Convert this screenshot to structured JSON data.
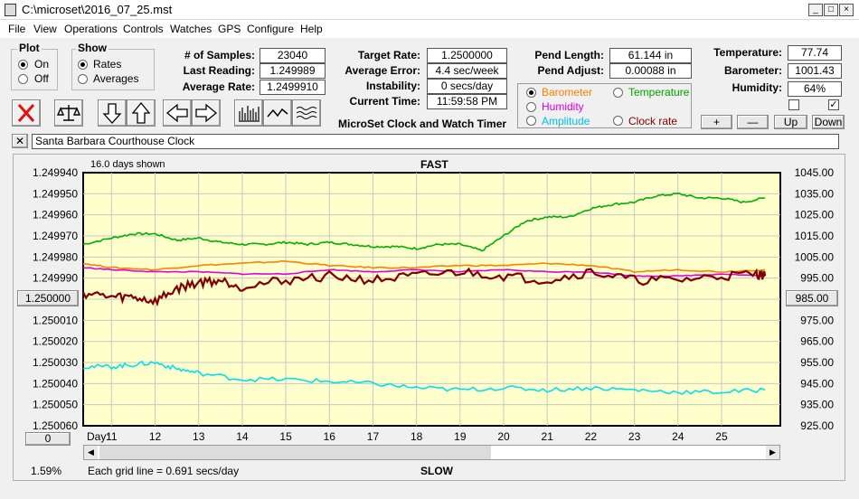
{
  "window": {
    "title": "C:\\microset\\2016_07_25.mst"
  },
  "menu": [
    "File",
    "View",
    "Operations",
    "Controls",
    "Watches",
    "GPS",
    "Configure",
    "Help"
  ],
  "plot": {
    "title": "Plot",
    "options": [
      "On",
      "Off"
    ],
    "selected": "On"
  },
  "show": {
    "title": "Show",
    "options": [
      "Rates",
      "Averages"
    ],
    "selected": "Rates"
  },
  "stats": {
    "samples_label": "# of Samples:",
    "samples": "23040",
    "last_label": "Last Reading:",
    "last": "1.249989",
    "avg_rate_label": "Average Rate:",
    "avg_rate": "1.2499910",
    "target_label": "Target Rate:",
    "target": "1.2500000",
    "avg_err_label": "Average Error:",
    "avg_err": "4.4 sec/week",
    "instab_label": "Instability:",
    "instab": "0 secs/day",
    "time_label": "Current Time:",
    "time": "11:59:58 PM",
    "pend_len_label": "Pend Length:",
    "pend_len": "61.144 in",
    "pend_adj_label": "Pend Adjust:",
    "pend_adj": "0.00088 in",
    "temp_label": "Temperature:",
    "temp": "77.74",
    "baro_label": "Barometer:",
    "baro": "1001.43",
    "hum_label": "Humidity:",
    "hum": "64%"
  },
  "app_caption": "MicroSet Clock and Watch Timer",
  "sensor_options": [
    {
      "label": "Barometer",
      "color": "#ff8000",
      "selected": true
    },
    {
      "label": "Temperature",
      "color": "#00a000",
      "selected": false
    },
    {
      "label": "Humidity",
      "color": "#e000e0",
      "selected": false
    },
    {
      "label": "Amplitude",
      "color": "#00c0e0",
      "selected": false
    },
    {
      "label": "Clock rate",
      "color": "#800000",
      "selected": false
    }
  ],
  "adjust_buttons": [
    "+",
    "—",
    "Up",
    "Down"
  ],
  "checkbox_right_checked": true,
  "clock_name": "Santa Barbara Courthouse Clock",
  "chart": {
    "days_shown": "16.0 days shown",
    "top_label": "FAST",
    "bottom_label": "SLOW",
    "grid_note": "Each grid line = 0.691 secs/day",
    "percent": "1.59%",
    "center_left": "1.250000",
    "center_right": "985.00",
    "bottom_btn": "0",
    "day_prefix": "Day:"
  },
  "chart_data": {
    "type": "line",
    "x_label": "Day:",
    "x_ticks": [
      11,
      12,
      13,
      14,
      15,
      16,
      17,
      18,
      19,
      20,
      21,
      22,
      23,
      24,
      25
    ],
    "xlim": [
      10.35,
      26.35
    ],
    "left_axis_ticks": [
      "1.249940",
      "1.249950",
      "1.249960",
      "1.249970",
      "1.249980",
      "1.249990",
      "1.250000",
      "1.250010",
      "1.250020",
      "1.250030",
      "1.250040",
      "1.250050",
      "1.250060"
    ],
    "ylim_left": [
      1.24994,
      1.25006
    ],
    "left_axis_inverted": true,
    "right_axis_ticks": [
      "1045.00",
      "1035.00",
      "1025.00",
      "1015.00",
      "1005.00",
      "995.00",
      "985.00",
      "975.00",
      "965.00",
      "955.00",
      "945.00",
      "935.00",
      "925.00"
    ],
    "ylim_right": [
      925,
      1045
    ],
    "series": [
      {
        "color": "#00b000",
        "x": [
          10.35,
          11,
          11.5,
          12,
          12.5,
          13,
          13.5,
          14,
          14.5,
          15,
          15.5,
          16,
          16.5,
          17,
          17.5,
          18,
          18.5,
          19,
          19.5,
          20,
          20.5,
          21,
          21.5,
          22,
          22.5,
          23,
          23.5,
          24,
          24.5,
          25,
          25.5,
          26
        ],
        "y": [
          1011,
          1014,
          1016,
          1016,
          1013,
          1014,
          1012,
          1011,
          1011,
          1012,
          1011,
          1012,
          1011,
          1010,
          1010,
          1009,
          1011,
          1011,
          1008,
          1015,
          1022,
          1024,
          1024,
          1028,
          1030,
          1031,
          1034,
          1035,
          1033,
          1033,
          1031,
          1033
        ]
      },
      {
        "color": "#ff8000",
        "x": [
          10.35,
          11,
          12,
          13,
          14,
          15,
          16,
          17,
          18,
          19,
          20,
          21,
          22,
          23,
          24,
          25,
          26
        ],
        "y": [
          1002,
          1000,
          999,
          1001,
          1002,
          1003,
          1001,
          1000,
          1000,
          1001,
          1001,
          1002,
          1001,
          998,
          999,
          998,
          999
        ]
      },
      {
        "color": "#e000e0",
        "x": [
          10.35,
          11,
          12,
          13,
          14,
          15,
          16,
          17,
          18,
          19,
          20,
          21,
          22,
          23,
          24,
          25,
          26
        ],
        "y": [
          1000,
          999,
          998,
          998,
          997,
          997,
          999,
          998,
          999,
          998,
          999,
          998,
          998,
          996,
          996,
          997,
          996
        ]
      },
      {
        "color": "#00e0f0",
        "x": [
          10.35,
          11,
          11.5,
          12,
          12.5,
          13,
          14,
          15,
          16,
          17,
          18,
          19,
          20,
          21,
          22,
          23,
          24,
          25,
          26
        ],
        "y": [
          953,
          953,
          954,
          955,
          952,
          950,
          947,
          947,
          946,
          945,
          943,
          942,
          943,
          942,
          943,
          942,
          941,
          941,
          942
        ]
      },
      {
        "color": "#800000",
        "x": [
          10.35,
          11,
          11.5,
          12,
          12.5,
          13,
          13.5,
          14,
          15,
          16,
          17,
          18,
          19,
          20,
          21,
          22,
          23,
          24,
          25,
          25.8,
          26
        ],
        "y": [
          988,
          986,
          986,
          984,
          990,
          993,
          994,
          991,
          994,
          996,
          994,
          996,
          998,
          996,
          994,
          998,
          994,
          994,
          996,
          997,
          996
        ]
      }
    ]
  }
}
